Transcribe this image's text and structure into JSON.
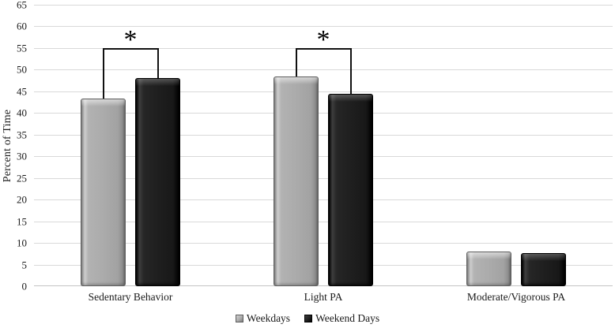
{
  "chart_data": {
    "type": "bar",
    "title": "",
    "xlabel": "",
    "ylabel": "Percent of Time",
    "ylim": [
      0,
      65
    ],
    "yticks": [
      0,
      5,
      10,
      15,
      20,
      25,
      30,
      35,
      40,
      45,
      50,
      55,
      60,
      65
    ],
    "grid": true,
    "legend_position": "bottom",
    "categories": [
      "Sedentary Behavior",
      "Light PA",
      "Moderate/Vigorous PA"
    ],
    "series": [
      {
        "name": "Weekdays",
        "color": "#ababab",
        "values": [
          43.3,
          48.5,
          8.0
        ]
      },
      {
        "name": "Weekend Days",
        "color": "#1f1f1f",
        "values": [
          48.1,
          44.4,
          7.7
        ]
      }
    ],
    "annotations": [
      {
        "type": "significance-bracket",
        "category_index": 0,
        "label": "*",
        "level": 55
      },
      {
        "type": "significance-bracket",
        "category_index": 1,
        "label": "*",
        "level": 55
      }
    ],
    "colors": {
      "gridline": "#d9d9d9",
      "axis_text": "#1a1a1a",
      "bracket": "#111111"
    }
  }
}
